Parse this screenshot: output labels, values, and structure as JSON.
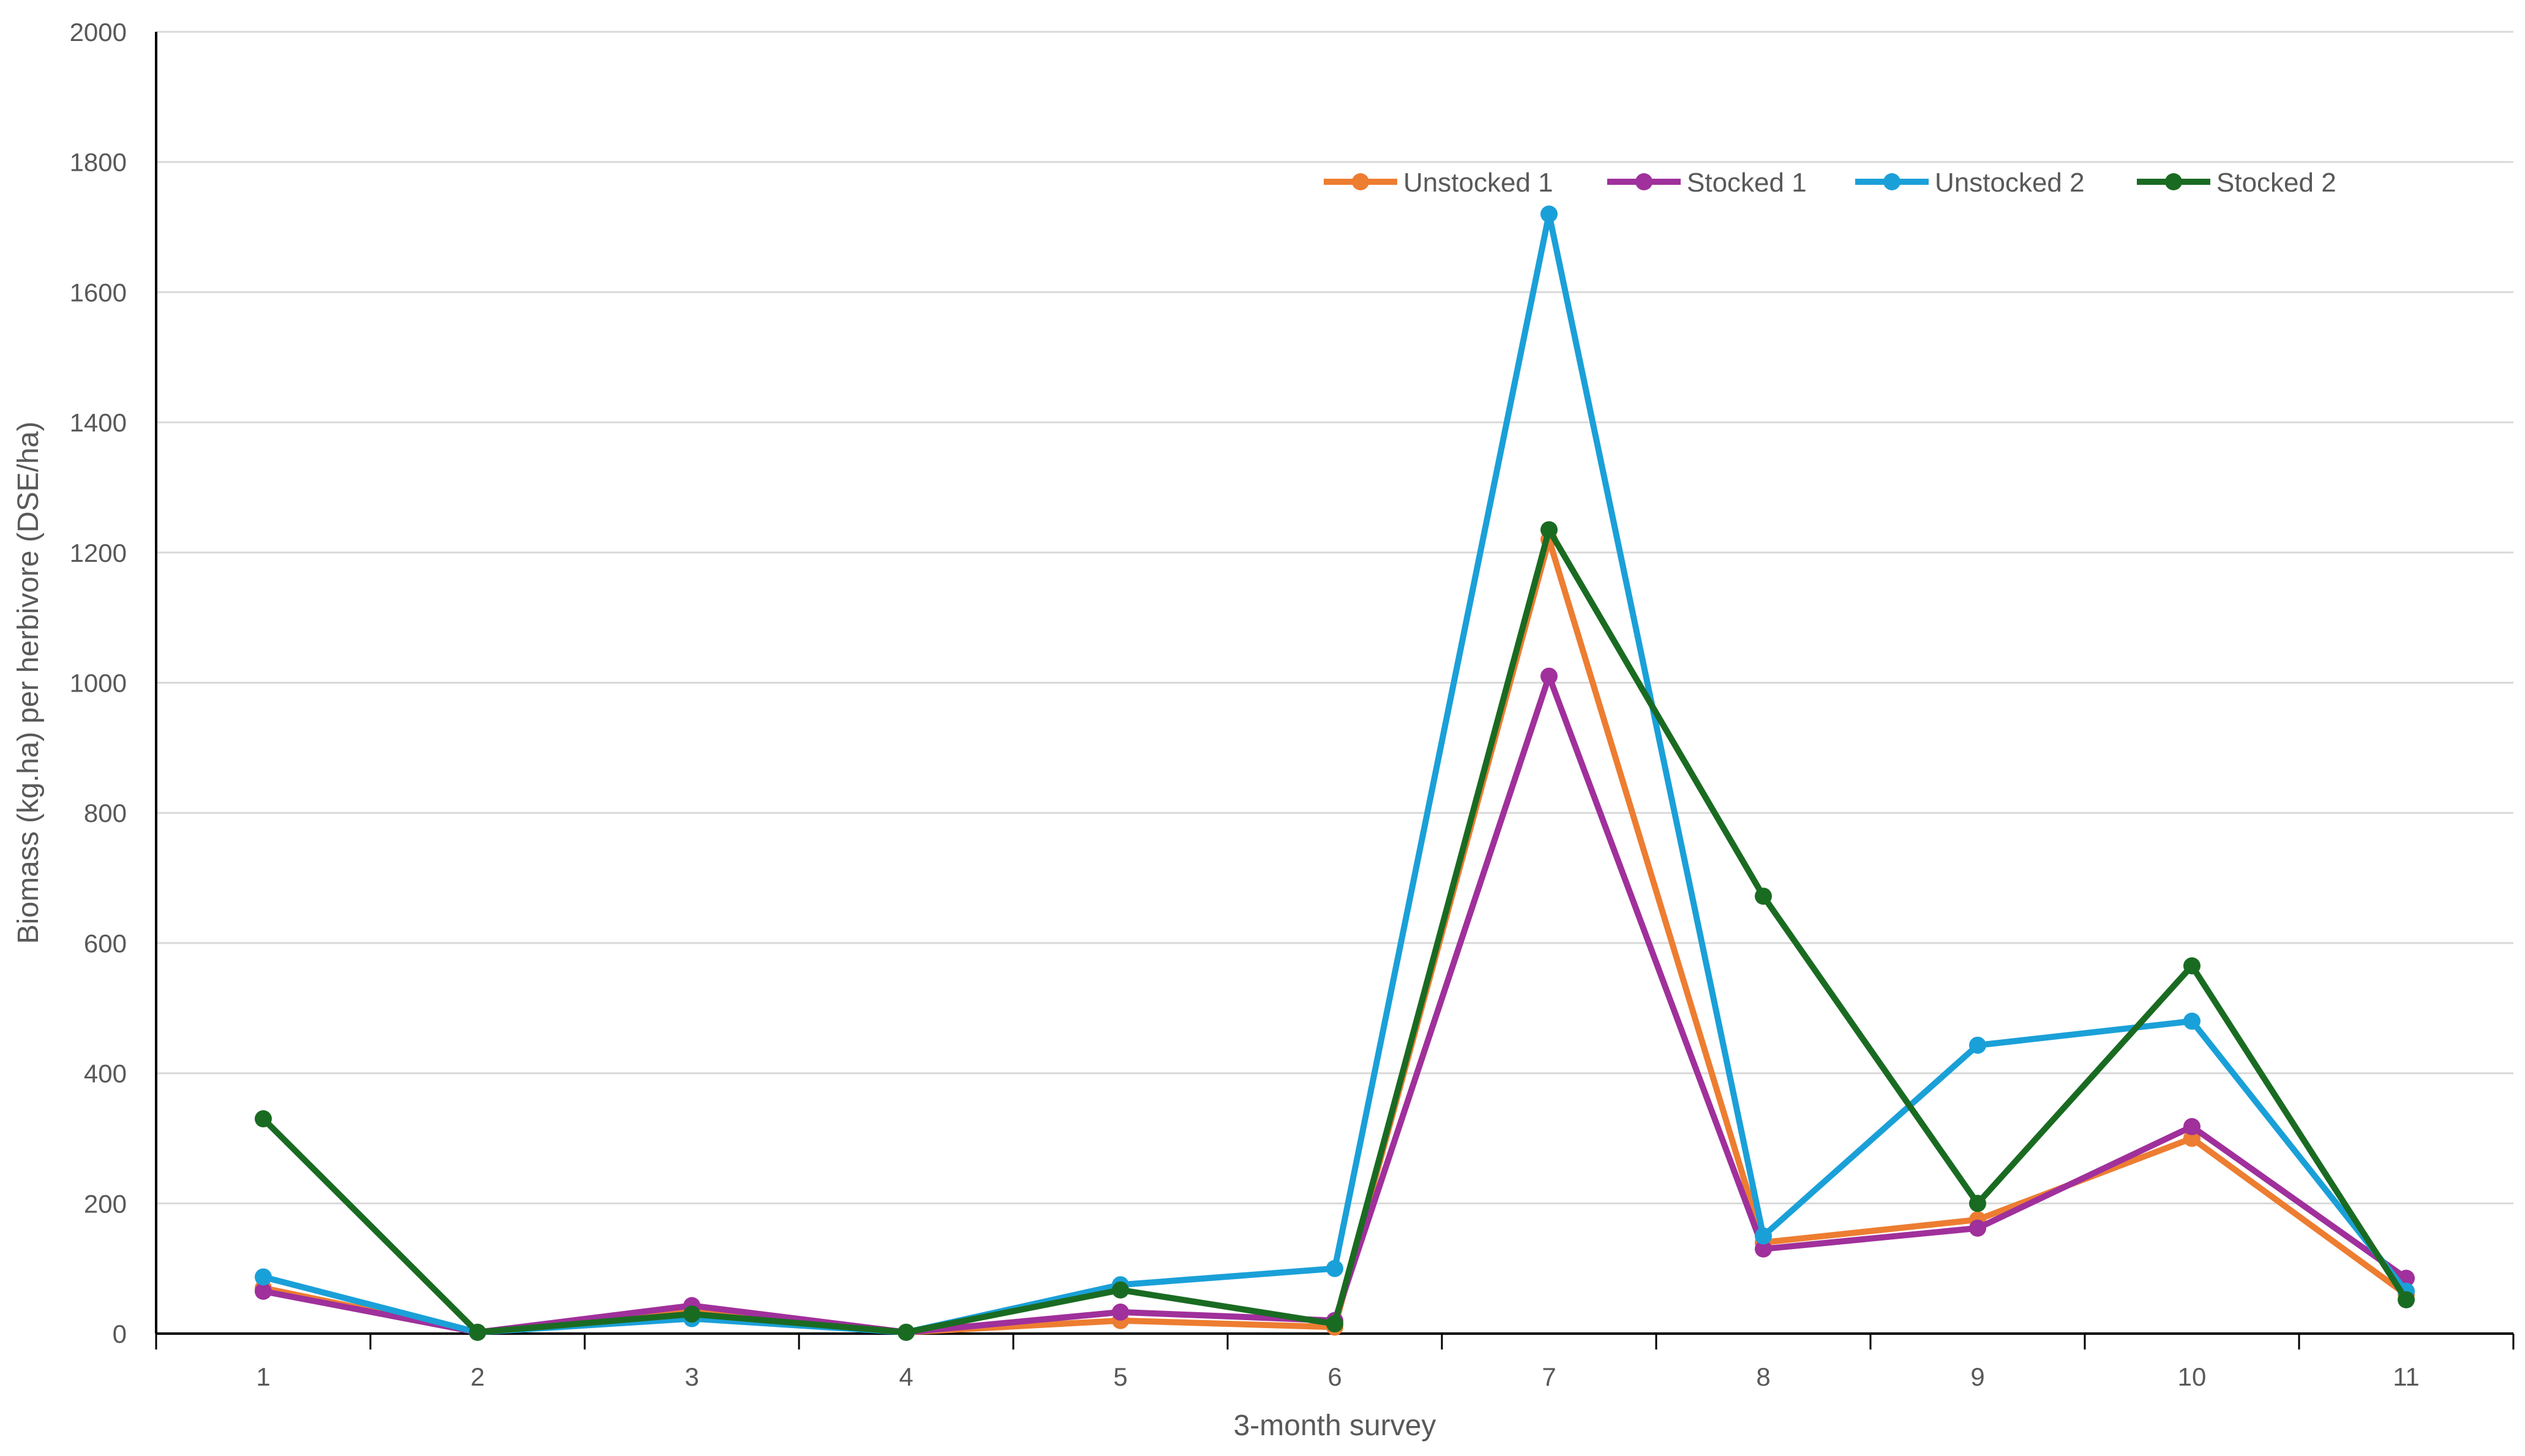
{
  "chart_data": {
    "type": "line",
    "title": "",
    "xlabel": "3-month survey",
    "ylabel": "Biomass (kg.ha) per herbivore (DSE/ha)",
    "x": [
      "1",
      "2",
      "3",
      "4",
      "5",
      "6",
      "7",
      "8",
      "9",
      "10",
      "11"
    ],
    "ylim": [
      0,
      2000
    ],
    "yticks": [
      "0",
      "200",
      "400",
      "600",
      "800",
      "1000",
      "1200",
      "1400",
      "1600",
      "1800",
      "2000"
    ],
    "grid": true,
    "legend_position": "top-right",
    "series": [
      {
        "name": "Unstocked 1",
        "color": "#ED7D31",
        "values": [
          70,
          2,
          35,
          2,
          20,
          10,
          1220,
          140,
          175,
          300,
          60
        ]
      },
      {
        "name": "Stocked 1",
        "color": "#A0309B",
        "values": [
          65,
          2,
          43,
          2,
          33,
          20,
          1010,
          130,
          162,
          318,
          85
        ]
      },
      {
        "name": "Unstocked 2",
        "color": "#1AA0D8",
        "values": [
          87,
          2,
          23,
          2,
          75,
          100,
          1720,
          150,
          443,
          480,
          65
        ]
      },
      {
        "name": "Stocked 2",
        "color": "#1A6B22",
        "values": [
          330,
          2,
          30,
          2,
          67,
          15,
          1235,
          672,
          200,
          565,
          52
        ]
      }
    ]
  }
}
